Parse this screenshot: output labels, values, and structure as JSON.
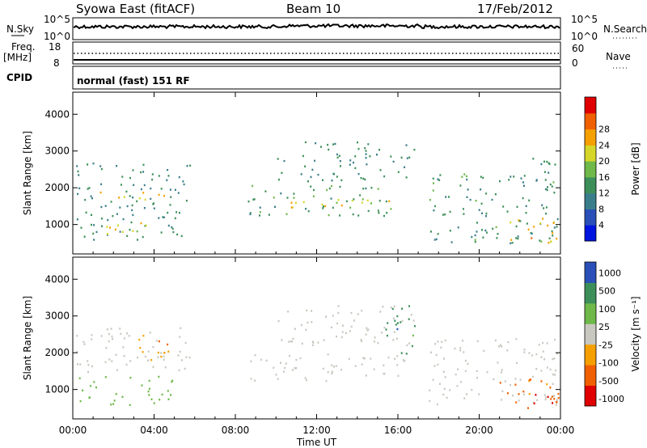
{
  "header": {
    "station": "Syowa East (fitACF)",
    "beam": "Beam 10",
    "date": "17/Feb/2012"
  },
  "strips": {
    "nsky_label": "N.Sky",
    "nsky_top": "10^5",
    "nsky_bottom": "10^0",
    "nsearch_label": "N.Search",
    "nsearch_top": "10^5",
    "nsearch_bottom": "10^0",
    "freq_label": "Freq.",
    "freq_unit": "[MHz]",
    "freq_top": "18",
    "freq_bottom": "8",
    "nave_label": "Nave",
    "nave_top": "60",
    "nave_bottom": "0",
    "cpid_label": "CPID",
    "cpid_text": "normal (fast) 151 RF"
  },
  "colors": {
    "power": [
      "#0014e0",
      "#2a4fb8",
      "#3a7d8a",
      "#3d8f5a",
      "#6fb84a",
      "#d6d62a",
      "#f5a000",
      "#f06000",
      "#e00000"
    ],
    "velocity": [
      "#e00000",
      "#f06000",
      "#f5a000",
      "#c8c8c0",
      "#6fb84a",
      "#3d8f5a",
      "#2a4fb8"
    ]
  },
  "chart_data": [
    {
      "type": "heatmap",
      "name_key": "power",
      "ylabel": "Slant Range [km]",
      "ylim": [
        200,
        4600
      ],
      "xlim": [
        0,
        24
      ],
      "yticks": [
        1000,
        2000,
        3000,
        4000
      ],
      "colorbar": {
        "label": "Power [dB]",
        "ticks": [
          "4",
          "8",
          "12",
          "16",
          "20",
          "24",
          "28"
        ],
        "range": [
          0,
          32
        ]
      },
      "features": [
        {
          "t0": 0.1,
          "t1": 5.8,
          "r0": 600,
          "r1": 2700,
          "level": 11
        },
        {
          "t0": 0.7,
          "t1": 4.6,
          "r0": 1650,
          "r1": 1900,
          "level": 22
        },
        {
          "t0": 1.5,
          "t1": 4.2,
          "r0": 650,
          "r1": 1100,
          "level": 19
        },
        {
          "t0": 8.6,
          "t1": 16.2,
          "r0": 1250,
          "r1": 2100,
          "level": 13
        },
        {
          "t0": 9.5,
          "t1": 15.8,
          "r0": 1450,
          "r1": 1700,
          "level": 21
        },
        {
          "t0": 10.0,
          "t1": 16.8,
          "r0": 2200,
          "r1": 3300,
          "level": 11
        },
        {
          "t0": 17.5,
          "t1": 23.9,
          "r0": 500,
          "r1": 2400,
          "level": 12
        },
        {
          "t0": 21.5,
          "t1": 23.9,
          "r0": 500,
          "r1": 1300,
          "level": 22
        },
        {
          "t0": 22.0,
          "t1": 23.8,
          "r0": 2000,
          "r1": 2900,
          "level": 12
        }
      ]
    },
    {
      "type": "heatmap",
      "name_key": "velocity",
      "ylabel": "Slant Range [km]",
      "xlabel": "Time UT",
      "ylim": [
        200,
        4600
      ],
      "xlim": [
        0,
        24
      ],
      "yticks": [
        1000,
        2000,
        3000,
        4000
      ],
      "xticks": [
        "00:00",
        "04:00",
        "08:00",
        "12:00",
        "16:00",
        "20:00",
        "00:00"
      ],
      "colorbar": {
        "label": "Velocity [m s⁻¹]",
        "ticks": [
          "1000",
          "500",
          "100",
          "25",
          "-25",
          "-100",
          "-500",
          "-1000"
        ],
        "range": [
          -1100,
          1100
        ]
      },
      "features": [
        {
          "t0": 0.1,
          "t1": 5.8,
          "r0": 1500,
          "r1": 2700,
          "level": 0
        },
        {
          "t0": 0.3,
          "t1": 5.0,
          "r0": 600,
          "r1": 1400,
          "level": 60
        },
        {
          "t0": 3.2,
          "t1": 5.0,
          "r0": 1800,
          "r1": 2600,
          "level": -90
        },
        {
          "t0": 8.6,
          "t1": 16.4,
          "r0": 1250,
          "r1": 2000,
          "level": 0
        },
        {
          "t0": 10.0,
          "t1": 16.8,
          "r0": 2200,
          "r1": 3300,
          "level": 10
        },
        {
          "t0": 15.3,
          "t1": 16.9,
          "r0": 2000,
          "r1": 3300,
          "level": 400
        },
        {
          "t0": 17.5,
          "t1": 23.9,
          "r0": 600,
          "r1": 2400,
          "level": 0
        },
        {
          "t0": 21.0,
          "t1": 23.9,
          "r0": 500,
          "r1": 1300,
          "level": -150
        },
        {
          "t0": 22.5,
          "t1": 23.9,
          "r0": 600,
          "r1": 1100,
          "level": -600
        }
      ]
    }
  ]
}
